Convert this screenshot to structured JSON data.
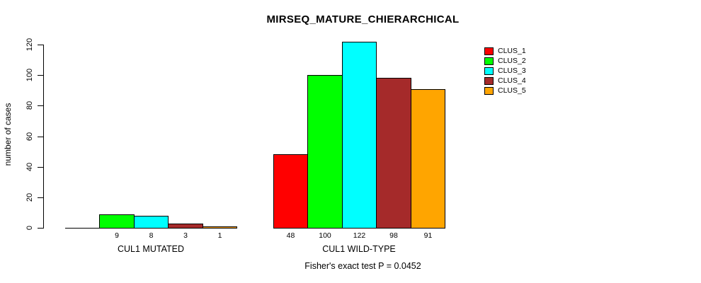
{
  "title": "MIRSEQ_MATURE_CHIERARCHICAL",
  "footnote": "Fisher's exact test P = 0.0452",
  "y_axis": {
    "label": "number of cases",
    "ticks": [
      "0",
      "20",
      "40",
      "60",
      "80",
      "100",
      "120"
    ]
  },
  "legend": {
    "items": [
      {
        "label": "CLUS_1",
        "color": "#FF0000"
      },
      {
        "label": "CLUS_2",
        "color": "#00FF00"
      },
      {
        "label": "CLUS_3",
        "color": "#00FFFF"
      },
      {
        "label": "CLUS_4",
        "color": "#A52A2A"
      },
      {
        "label": "CLUS_5",
        "color": "#FFA500"
      }
    ]
  },
  "chart_data": {
    "type": "bar",
    "title": "MIRSEQ_MATURE_CHIERARCHICAL",
    "ylabel": "number of cases",
    "xlabel": "",
    "ylim": [
      0,
      120
    ],
    "yticks": [
      0,
      20,
      40,
      60,
      80,
      100,
      120
    ],
    "grid": false,
    "legend_position": "right",
    "categories": [
      "CUL1 MUTATED",
      "CUL1 WILD-TYPE"
    ],
    "series": [
      {
        "name": "CLUS_1",
        "color": "#FF0000",
        "values": [
          0,
          48
        ]
      },
      {
        "name": "CLUS_2",
        "color": "#00FF00",
        "values": [
          9,
          100
        ]
      },
      {
        "name": "CLUS_3",
        "color": "#00FFFF",
        "values": [
          8,
          122
        ]
      },
      {
        "name": "CLUS_4",
        "color": "#A52A2A",
        "values": [
          3,
          98
        ]
      },
      {
        "name": "CLUS_5",
        "color": "#FFA500",
        "values": [
          1,
          91
        ]
      }
    ],
    "bar_labels": [
      [
        "",
        "9",
        "8",
        "3",
        "1"
      ],
      [
        "48",
        "100",
        "122",
        "98",
        "91"
      ]
    ],
    "annotation": "Fisher's exact test P = 0.0452"
  }
}
